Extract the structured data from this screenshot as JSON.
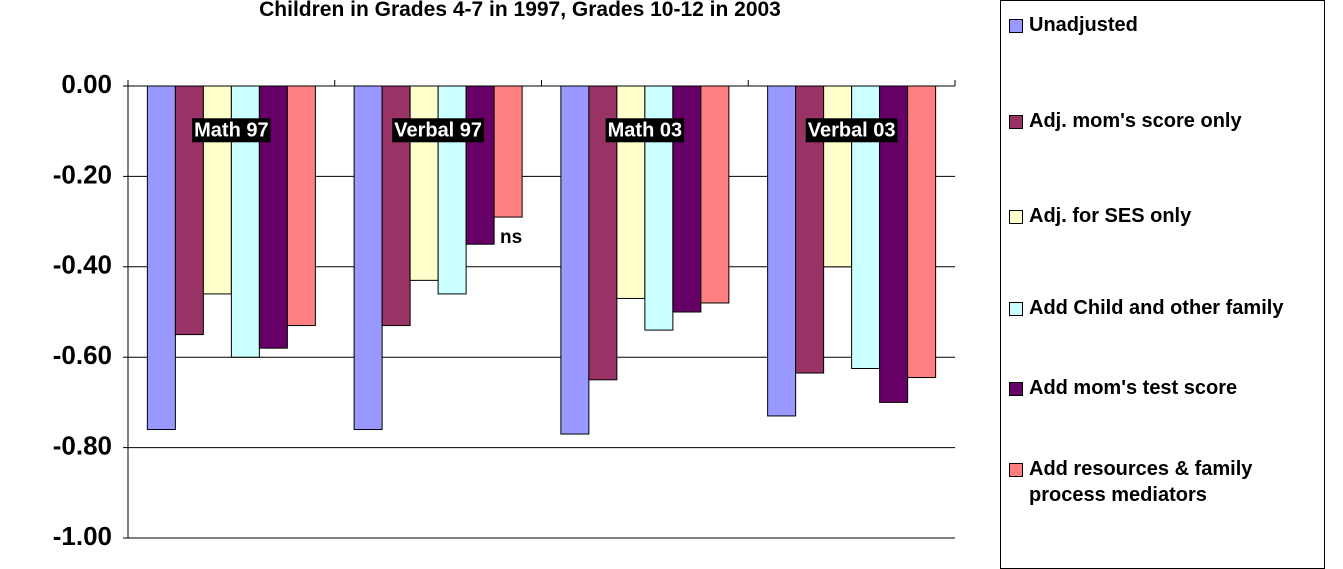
{
  "chart_data": {
    "type": "bar",
    "title": "Children in Grades 4-7 in 1997, Grades 10-12 in 2003",
    "categories": [
      "Math 97",
      "Verbal 97",
      "Math 03",
      "Verbal 03"
    ],
    "series": [
      {
        "name": "Unadjusted",
        "color": "#9999ff",
        "values": [
          -0.76,
          -0.76,
          -0.77,
          -0.73
        ]
      },
      {
        "name": "Adj. mom's score only",
        "color": "#993366",
        "values": [
          -0.55,
          -0.53,
          -0.65,
          -0.635
        ]
      },
      {
        "name": "Adj. for SES only",
        "color": "#ffffcc",
        "values": [
          -0.46,
          -0.43,
          -0.47,
          -0.4
        ]
      },
      {
        "name": "Add Child and other family",
        "color": "#ccffff",
        "values": [
          -0.6,
          -0.46,
          -0.54,
          -0.625
        ]
      },
      {
        "name": "Add mom's test score",
        "color": "#660066",
        "values": [
          -0.58,
          -0.35,
          -0.5,
          -0.7
        ]
      },
      {
        "name": "Add resources & family process mediators",
        "color": "#ff8080",
        "values": [
          -0.53,
          -0.29,
          -0.48,
          -0.645
        ]
      }
    ],
    "annotations": [
      "ns"
    ],
    "ylim": [
      -1,
      0
    ],
    "yticks": [
      {
        "value": 0,
        "label": "0.00"
      },
      {
        "value": -0.2,
        "label": "-0.20"
      },
      {
        "value": -0.4,
        "label": "-0.40"
      },
      {
        "value": -0.6,
        "label": "-0.60"
      },
      {
        "value": -0.8,
        "label": "-0.80"
      },
      {
        "value": -1,
        "label": "-1.00"
      }
    ],
    "grid": true
  }
}
